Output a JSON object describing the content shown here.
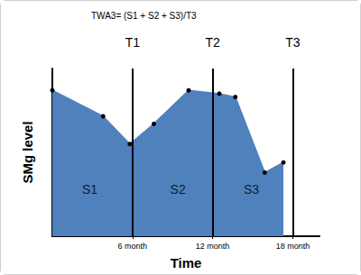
{
  "chart_data": {
    "type": "area",
    "title": "TWA3= (S1 + S2 + S3)/T3",
    "x_label": "Time",
    "y_label": "SMg level",
    "x": [
      0,
      3.8,
      5.8,
      7.6,
      10.2,
      12.5,
      13.7,
      15.9,
      17.3
    ],
    "values": [
      8.7,
      7.15,
      5.5,
      6.7,
      8.7,
      8.5,
      8.3,
      3.8,
      4.4
    ],
    "color": "#4f81bd",
    "marker": "circle",
    "xlim": [
      0,
      20
    ],
    "xticks": [
      {
        "value": 6,
        "label": "6 month"
      },
      {
        "value": 12,
        "label": "12 month"
      },
      {
        "value": 18,
        "label": "18 month"
      }
    ],
    "ylim": [
      0,
      10
    ],
    "yticks": [],
    "tick_labels": "x",
    "grid": false,
    "vlines": [
      {
        "x": 6,
        "label": "T1"
      },
      {
        "x": 12,
        "label": "T2"
      },
      {
        "x": 18,
        "label": "T3"
      }
    ],
    "annotations": [
      {
        "text": "S1",
        "x": 2.8,
        "y": 2.8
      },
      {
        "text": "S2",
        "x": 9.4,
        "y": 2.8
      },
      {
        "text": "S3",
        "x": 14.9,
        "y": 2.8
      }
    ]
  }
}
